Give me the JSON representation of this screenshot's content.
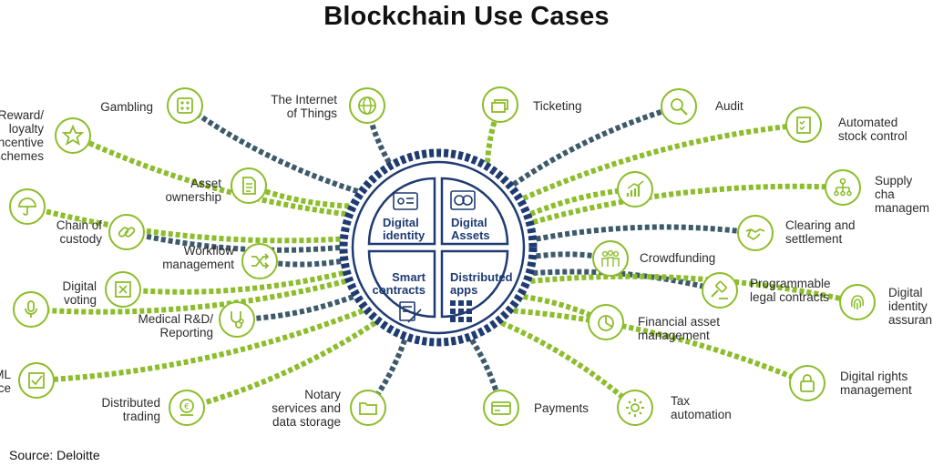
{
  "title": "Blockchain Use Cases",
  "source": "Source: Deloitte",
  "colors": {
    "green": "#8cbd2a",
    "navy": "#1f3b72",
    "slate": "#3d5a6b"
  },
  "hub": {
    "quadrants": [
      {
        "label": "Digital\nidentity",
        "icon": "id-card-icon"
      },
      {
        "label": "Digital\nAssets",
        "icon": "coins-icon"
      },
      {
        "label": "Smart\ncontracts",
        "icon": "contract-pen-icon"
      },
      {
        "label": "Distributed\napps",
        "icon": "grid-apps-icon"
      }
    ]
  },
  "use_cases": [
    {
      "label": "Reward/\nloyalty\nincentive\nschemes",
      "icon": "star-icon"
    },
    {
      "label": "Gambling",
      "icon": "dice-icon"
    },
    {
      "label": "The Internet\nof Things",
      "icon": "globe-icon"
    },
    {
      "label": "Asset\nownership",
      "icon": "document-icon"
    },
    {
      "label": "Chain of\ncustody",
      "icon": "chain-link-icon"
    },
    {
      "label": "Workflow\nmanagement",
      "icon": "shuffle-icon"
    },
    {
      "label": "Digital\nvoting",
      "icon": "ballot-icon"
    },
    {
      "label": "Medical R&D/\nReporting",
      "icon": "stethoscope-icon"
    },
    {
      "label": "Distributed\ntrading",
      "icon": "coin-stack-icon"
    },
    {
      "label": "Notary\nservices and\ndata storage",
      "icon": "folder-icon"
    },
    {
      "label": "Ticketing",
      "icon": "ticket-icon"
    },
    {
      "label": "Audit",
      "icon": "magnifier-icon"
    },
    {
      "label": "Automated\nstock control",
      "icon": "checklist-icon"
    },
    {
      "label": "Supply cha\nmanagem",
      "icon": "hierarchy-icon"
    },
    {
      "label": "Clearing and\nsettlement",
      "icon": "handshake-icon"
    },
    {
      "label": "Crowdfunding",
      "icon": "crowd-icon"
    },
    {
      "label": "Programmable\nlegal contracts",
      "icon": "gavel-icon"
    },
    {
      "label": "Digital\nidentity\nassuran",
      "icon": "fingerprint-icon"
    },
    {
      "label": "Financial asset\nmanagement",
      "icon": "pie-chart-icon"
    },
    {
      "label": "Digital rights\nmanagement",
      "icon": "padlock-icon"
    },
    {
      "label": "Payments",
      "icon": "credit-card-icon"
    },
    {
      "label": "Tax\nautomation",
      "icon": "gear-icon"
    },
    {
      "label": "ML\nce",
      "icon": "checkbox-icon"
    },
    {
      "label": "",
      "icon": "umbrella-icon"
    },
    {
      "label": "",
      "icon": "microphone-icon"
    },
    {
      "label": "",
      "icon": "bar-growth-icon"
    }
  ]
}
